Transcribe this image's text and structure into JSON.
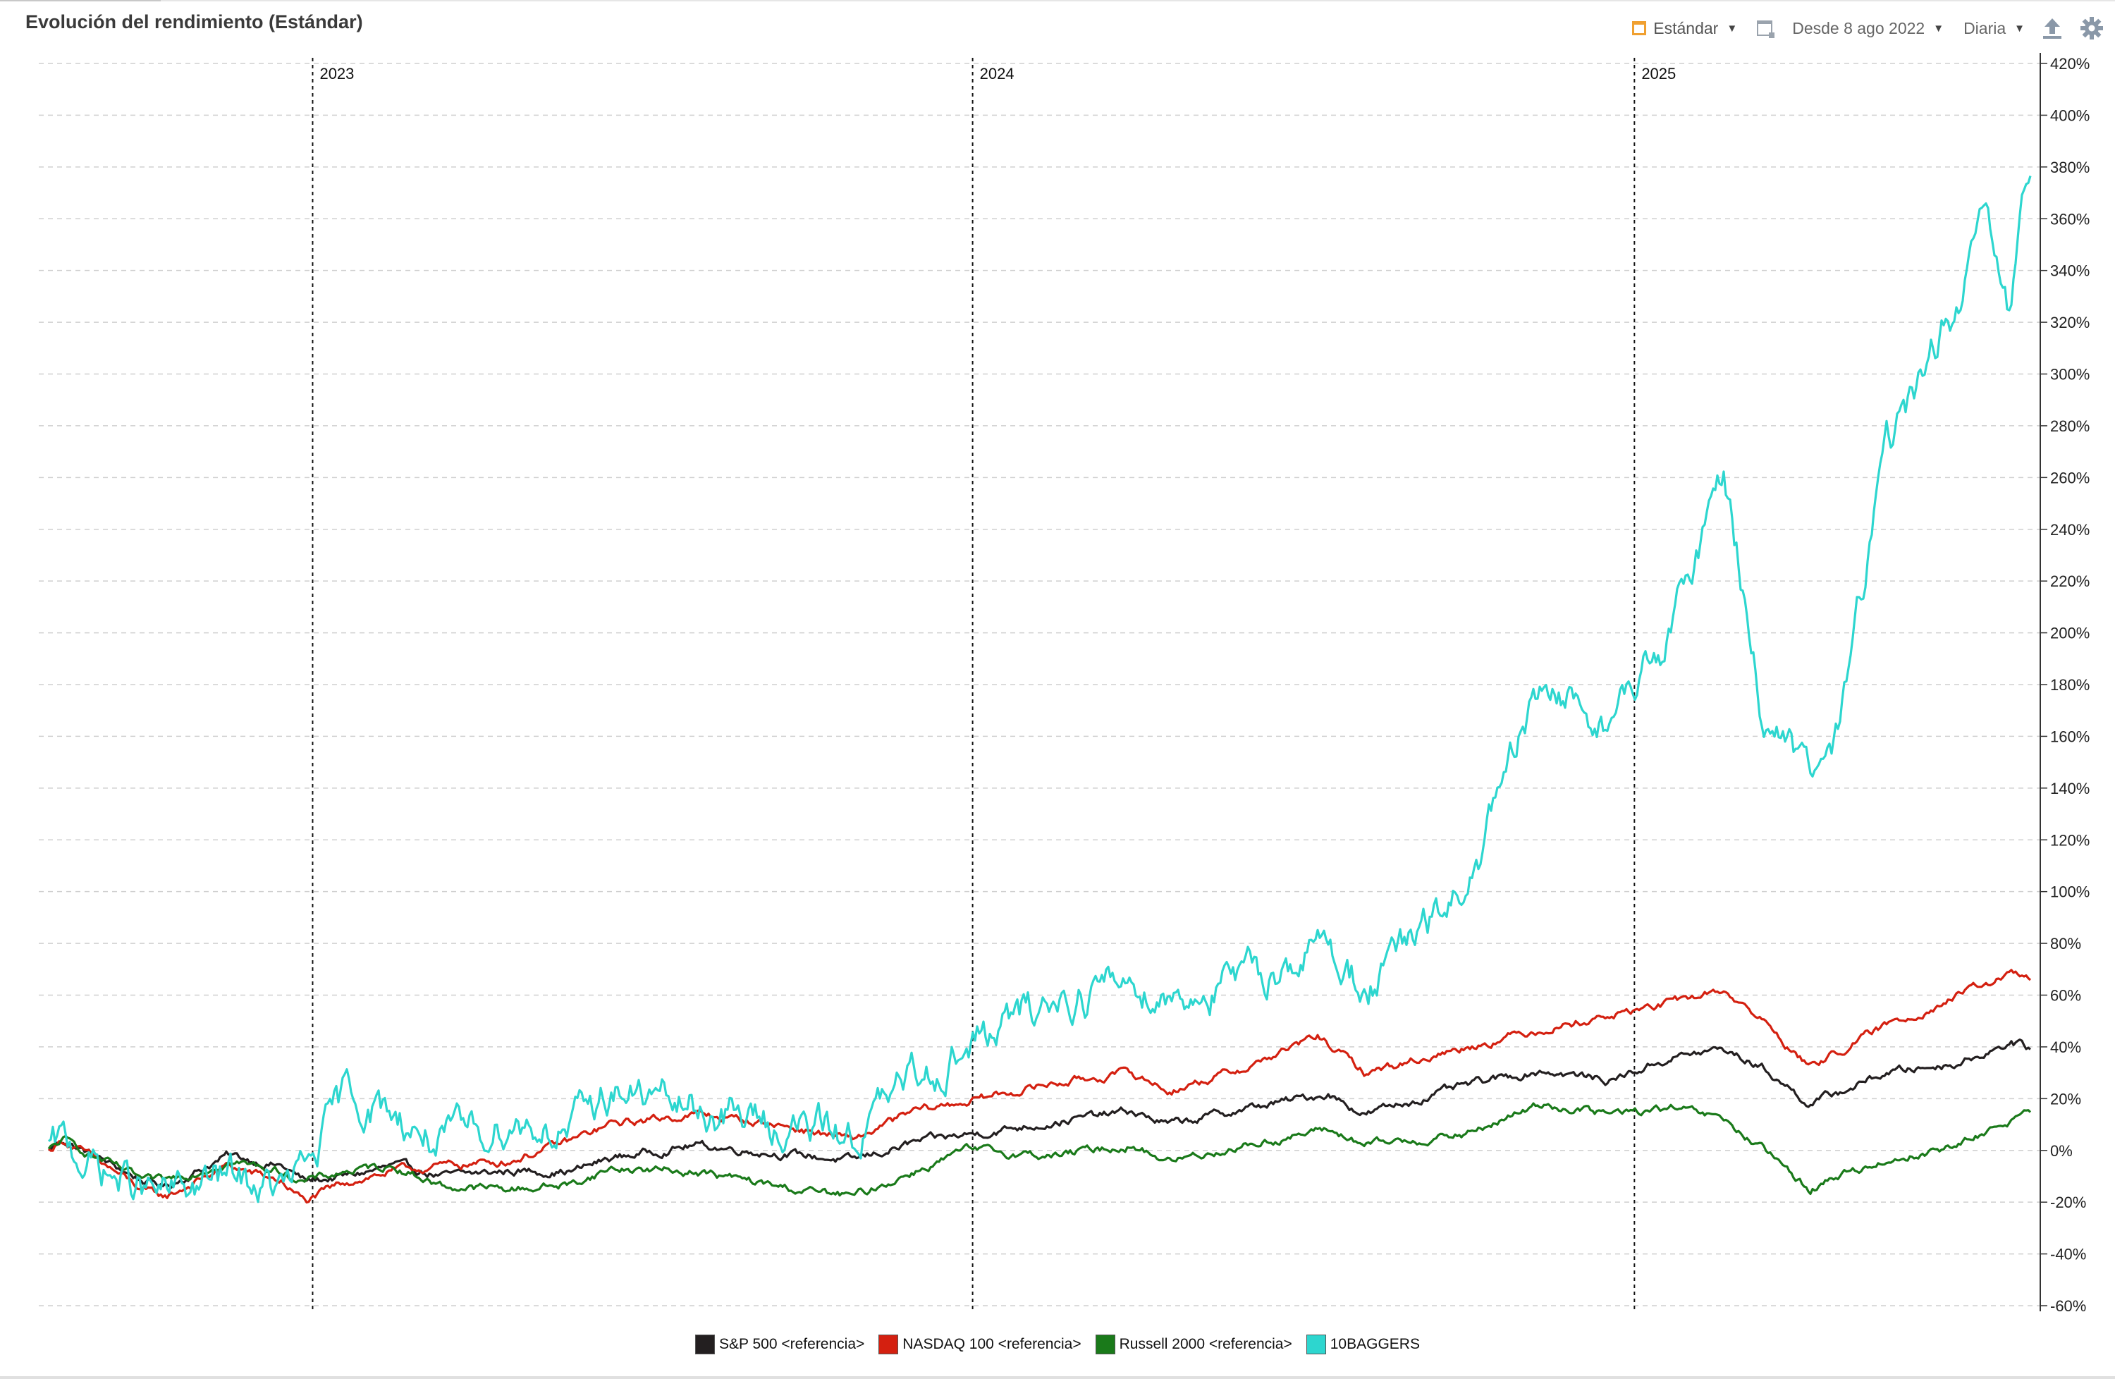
{
  "title": "Evolución del rendimiento (Estándar)",
  "toolbar": {
    "view_label": "Estándar",
    "range_label": "Desde 8 ago 2022",
    "interval_label": "Diaria",
    "icons": [
      "calendar-icon",
      "calendar-range-icon",
      "export-icon",
      "gear-icon"
    ],
    "accent_color": "#f0a030"
  },
  "chart_data": {
    "type": "line",
    "x_axis": {
      "type": "date",
      "start": "2022-08-08",
      "end": "2025-08-08",
      "year_markers": [
        "2023",
        "2024",
        "2025"
      ]
    },
    "y_axis": {
      "position": "right",
      "unit": "%",
      "ylim": [
        -60,
        420
      ],
      "ticks": [
        "420%",
        "400%",
        "380%",
        "360%",
        "340%",
        "320%",
        "300%",
        "280%",
        "260%",
        "240%",
        "220%",
        "200%",
        "180%",
        "160%",
        "140%",
        "120%",
        "100%",
        "80%",
        "60%",
        "40%",
        "20%",
        "0%",
        "-20%",
        "-40%",
        "-60%"
      ]
    },
    "grid": true,
    "legend_position": "bottom",
    "series": [
      {
        "name": "S&P 500  <referencia>",
        "color": "#231f20",
        "points": [
          [
            "2022-08-08",
            0
          ],
          [
            "2022-08-16",
            4
          ],
          [
            "2022-09-13",
            -6
          ],
          [
            "2022-09-30",
            -12
          ],
          [
            "2022-10-12",
            -14
          ],
          [
            "2022-11-15",
            -2
          ],
          [
            "2022-12-15",
            -6
          ],
          [
            "2022-12-28",
            -12
          ],
          [
            "2023-01-20",
            -10
          ],
          [
            "2023-02-15",
            -6
          ],
          [
            "2023-03-15",
            -10
          ],
          [
            "2023-04-20",
            -8
          ],
          [
            "2023-05-25",
            -8
          ],
          [
            "2023-06-15",
            -3
          ],
          [
            "2023-07-31",
            2
          ],
          [
            "2023-09-15",
            -1
          ],
          [
            "2023-10-27",
            -4
          ],
          [
            "2023-11-30",
            3
          ],
          [
            "2023-12-29",
            6
          ],
          [
            "2024-02-15",
            11
          ],
          [
            "2024-03-28",
            15
          ],
          [
            "2024-04-19",
            10
          ],
          [
            "2024-05-31",
            16
          ],
          [
            "2024-07-16",
            22
          ],
          [
            "2024-08-05",
            14
          ],
          [
            "2024-09-30",
            25
          ],
          [
            "2024-11-11",
            31
          ],
          [
            "2024-12-18",
            27
          ],
          [
            "2025-01-22",
            36
          ],
          [
            "2025-02-19",
            39
          ],
          [
            "2025-03-13",
            32
          ],
          [
            "2025-04-08",
            18
          ],
          [
            "2025-04-23",
            22
          ],
          [
            "2025-05-20",
            30
          ],
          [
            "2025-06-30",
            34
          ],
          [
            "2025-07-28",
            42
          ],
          [
            "2025-08-08",
            39
          ]
        ]
      },
      {
        "name": "NASDAQ 100 <referencia>",
        "color": "#d42010",
        "points": [
          [
            "2022-08-08",
            0
          ],
          [
            "2022-08-16",
            4
          ],
          [
            "2022-09-13",
            -8
          ],
          [
            "2022-09-30",
            -16
          ],
          [
            "2022-10-12",
            -18
          ],
          [
            "2022-11-15",
            -6
          ],
          [
            "2022-12-15",
            -12
          ],
          [
            "2022-12-28",
            -20
          ],
          [
            "2023-01-20",
            -12
          ],
          [
            "2023-02-15",
            -8
          ],
          [
            "2023-03-15",
            -6
          ],
          [
            "2023-04-20",
            -4
          ],
          [
            "2023-05-25",
            4
          ],
          [
            "2023-06-15",
            10
          ],
          [
            "2023-07-31",
            14
          ],
          [
            "2023-09-15",
            10
          ],
          [
            "2023-10-27",
            4
          ],
          [
            "2023-11-30",
            15
          ],
          [
            "2023-12-29",
            19
          ],
          [
            "2024-02-15",
            26
          ],
          [
            "2024-03-28",
            30
          ],
          [
            "2024-04-19",
            23
          ],
          [
            "2024-05-31",
            32
          ],
          [
            "2024-07-10",
            44
          ],
          [
            "2024-08-05",
            30
          ],
          [
            "2024-09-30",
            40
          ],
          [
            "2024-11-11",
            47
          ],
          [
            "2024-12-18",
            52
          ],
          [
            "2025-01-22",
            57
          ],
          [
            "2025-02-19",
            62
          ],
          [
            "2025-03-13",
            50
          ],
          [
            "2025-04-08",
            32
          ],
          [
            "2025-04-23",
            38
          ],
          [
            "2025-05-20",
            48
          ],
          [
            "2025-06-30",
            60
          ],
          [
            "2025-07-28",
            68
          ],
          [
            "2025-08-08",
            66
          ]
        ]
      },
      {
        "name": "Russell 2000 <referencia>",
        "color": "#1a7a1a",
        "points": [
          [
            "2022-08-08",
            0
          ],
          [
            "2022-08-16",
            4
          ],
          [
            "2022-09-13",
            -6
          ],
          [
            "2022-09-30",
            -12
          ],
          [
            "2022-10-12",
            -12
          ],
          [
            "2022-11-15",
            -4
          ],
          [
            "2022-12-15",
            -8
          ],
          [
            "2022-12-28",
            -12
          ],
          [
            "2023-01-20",
            -8
          ],
          [
            "2023-02-15",
            -6
          ],
          [
            "2023-03-15",
            -14
          ],
          [
            "2023-04-20",
            -15
          ],
          [
            "2023-05-25",
            -13
          ],
          [
            "2023-06-15",
            -7
          ],
          [
            "2023-07-31",
            -8
          ],
          [
            "2023-09-15",
            -14
          ],
          [
            "2023-10-27",
            -18
          ],
          [
            "2023-11-30",
            -8
          ],
          [
            "2023-12-29",
            0
          ],
          [
            "2024-02-15",
            -2
          ],
          [
            "2024-03-28",
            2
          ],
          [
            "2024-04-19",
            -4
          ],
          [
            "2024-05-31",
            2
          ],
          [
            "2024-07-16",
            8
          ],
          [
            "2024-08-05",
            2
          ],
          [
            "2024-09-30",
            6
          ],
          [
            "2024-11-11",
            18
          ],
          [
            "2024-12-18",
            14
          ],
          [
            "2025-01-22",
            16
          ],
          [
            "2025-02-19",
            12
          ],
          [
            "2025-03-13",
            0
          ],
          [
            "2025-04-08",
            -15
          ],
          [
            "2025-04-23",
            -10
          ],
          [
            "2025-05-20",
            -4
          ],
          [
            "2025-06-30",
            2
          ],
          [
            "2025-07-28",
            12
          ],
          [
            "2025-08-08",
            14
          ]
        ]
      },
      {
        "name": "10BAGGERS",
        "color": "#2dd6cf",
        "points": [
          [
            "2022-08-08",
            0
          ],
          [
            "2022-08-16",
            2
          ],
          [
            "2022-09-13",
            -10
          ],
          [
            "2022-09-30",
            -16
          ],
          [
            "2022-10-12",
            -18
          ],
          [
            "2022-11-15",
            -10
          ],
          [
            "2022-12-15",
            -16
          ],
          [
            "2022-12-28",
            -8
          ],
          [
            "2023-01-20",
            22
          ],
          [
            "2023-02-15",
            14
          ],
          [
            "2023-03-15",
            2
          ],
          [
            "2023-04-20",
            12
          ],
          [
            "2023-05-25",
            8
          ],
          [
            "2023-06-15",
            24
          ],
          [
            "2023-07-31",
            16
          ],
          [
            "2023-09-15",
            10
          ],
          [
            "2023-10-27",
            6
          ],
          [
            "2023-11-30",
            28
          ],
          [
            "2023-12-29",
            40
          ],
          [
            "2024-02-15",
            58
          ],
          [
            "2024-03-28",
            66
          ],
          [
            "2024-04-19",
            60
          ],
          [
            "2024-05-31",
            65
          ],
          [
            "2024-07-16",
            80
          ],
          [
            "2024-08-05",
            62
          ],
          [
            "2024-09-30",
            100
          ],
          [
            "2024-11-11",
            180
          ],
          [
            "2024-12-18",
            165
          ],
          [
            "2025-01-22",
            200
          ],
          [
            "2025-02-19",
            265
          ],
          [
            "2025-03-13",
            170
          ],
          [
            "2025-04-08",
            142
          ],
          [
            "2025-04-23",
            160
          ],
          [
            "2025-05-20",
            270
          ],
          [
            "2025-06-30",
            330
          ],
          [
            "2025-07-15",
            358
          ],
          [
            "2025-07-28",
            318
          ],
          [
            "2025-08-08",
            380
          ]
        ]
      }
    ]
  },
  "legend": {
    "items": [
      {
        "label": "S&P 500  <referencia>",
        "color": "#231f20"
      },
      {
        "label": "NASDAQ 100 <referencia>",
        "color": "#d42010"
      },
      {
        "label": "Russell 2000 <referencia>",
        "color": "#1a7a1a"
      },
      {
        "label": "10BAGGERS",
        "color": "#2dd6cf"
      }
    ]
  }
}
